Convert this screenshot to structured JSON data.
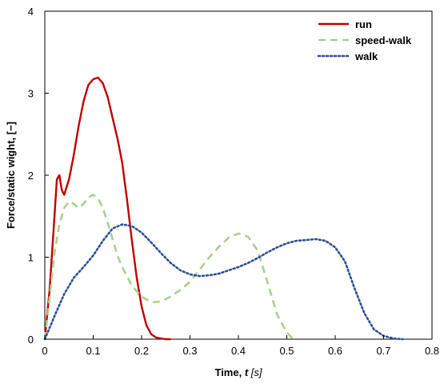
{
  "chart_data": {
    "type": "line",
    "title": "",
    "xlabel": "Time, ",
    "xlabel_symbol": "t",
    "xlabel_unit": "[s]",
    "ylabel": "Force/static wight, [−]",
    "xlim": [
      0,
      0.8
    ],
    "ylim": [
      0,
      4
    ],
    "x_ticks": [
      "0",
      "0.1",
      "0.2",
      "0.3",
      "0.4",
      "0.5",
      "0.6",
      "0.7",
      "0.8"
    ],
    "y_ticks": [
      "0",
      "1",
      "2",
      "3",
      "4"
    ],
    "grid": false,
    "legend_position": "top-right",
    "series": [
      {
        "name": "run",
        "color": "#c00000",
        "style": "solid",
        "x": [
          0,
          0.01,
          0.02,
          0.025,
          0.03,
          0.035,
          0.04,
          0.05,
          0.06,
          0.07,
          0.08,
          0.09,
          0.1,
          0.11,
          0.12,
          0.13,
          0.14,
          0.15,
          0.16,
          0.17,
          0.18,
          0.19,
          0.2,
          0.21,
          0.22,
          0.23,
          0.24,
          0.25,
          0.26
        ],
        "y": [
          0,
          0.6,
          1.5,
          1.95,
          2.0,
          1.82,
          1.76,
          1.95,
          2.25,
          2.6,
          2.9,
          3.1,
          3.17,
          3.19,
          3.12,
          2.95,
          2.7,
          2.45,
          2.15,
          1.7,
          1.2,
          0.75,
          0.4,
          0.17,
          0.06,
          0.02,
          0.01,
          0.0,
          0.0
        ]
      },
      {
        "name": "speed-walk",
        "color": "#a9d18e",
        "style": "dashed",
        "x": [
          0,
          0.01,
          0.02,
          0.03,
          0.04,
          0.05,
          0.06,
          0.07,
          0.08,
          0.09,
          0.1,
          0.11,
          0.12,
          0.13,
          0.14,
          0.15,
          0.16,
          0.18,
          0.2,
          0.22,
          0.24,
          0.26,
          0.28,
          0.3,
          0.32,
          0.34,
          0.36,
          0.38,
          0.4,
          0.42,
          0.44,
          0.46,
          0.48,
          0.5,
          0.51,
          0.52
        ],
        "y": [
          0,
          0.5,
          1.05,
          1.4,
          1.6,
          1.68,
          1.65,
          1.6,
          1.65,
          1.73,
          1.76,
          1.72,
          1.6,
          1.42,
          1.22,
          1.02,
          0.88,
          0.65,
          0.52,
          0.45,
          0.46,
          0.52,
          0.6,
          0.7,
          0.85,
          1.0,
          1.13,
          1.24,
          1.29,
          1.25,
          1.08,
          0.7,
          0.3,
          0.08,
          0.02,
          0.0
        ]
      },
      {
        "name": "walk",
        "color": "#2e4f99",
        "style": "dotted",
        "x": [
          0,
          0.02,
          0.04,
          0.06,
          0.08,
          0.1,
          0.12,
          0.14,
          0.16,
          0.18,
          0.2,
          0.22,
          0.24,
          0.26,
          0.28,
          0.3,
          0.32,
          0.34,
          0.36,
          0.38,
          0.4,
          0.42,
          0.44,
          0.46,
          0.48,
          0.5,
          0.52,
          0.54,
          0.56,
          0.58,
          0.6,
          0.62,
          0.64,
          0.66,
          0.68,
          0.7,
          0.72,
          0.74
        ],
        "y": [
          0,
          0.28,
          0.55,
          0.75,
          0.88,
          1.02,
          1.2,
          1.35,
          1.4,
          1.38,
          1.3,
          1.18,
          1.05,
          0.93,
          0.84,
          0.79,
          0.77,
          0.78,
          0.8,
          0.84,
          0.88,
          0.93,
          0.99,
          1.06,
          1.12,
          1.17,
          1.2,
          1.21,
          1.22,
          1.2,
          1.12,
          0.95,
          0.62,
          0.32,
          0.12,
          0.04,
          0.01,
          0.0
        ]
      }
    ]
  }
}
